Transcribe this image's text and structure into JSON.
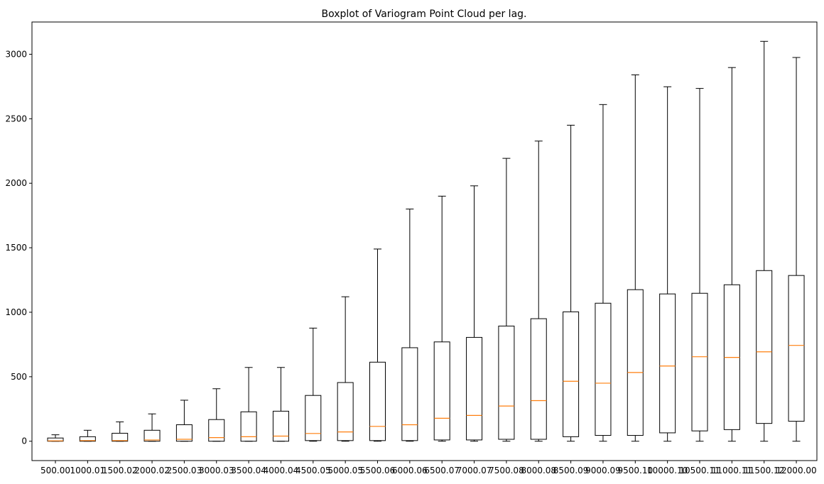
{
  "chart_data": {
    "type": "boxplot",
    "title": "Boxplot of Variogram Point Cloud per lag.",
    "xlabel": "",
    "ylabel": "",
    "ylim": [
      -150,
      3250
    ],
    "yticks": [
      0,
      500,
      1000,
      1500,
      2000,
      2500,
      3000
    ],
    "grid": false,
    "colors": {
      "box": "#000000",
      "median": "#ff7f0e"
    },
    "categories": [
      "500.00",
      "1000.01",
      "1500.02",
      "2000.02",
      "2500.03",
      "3000.03",
      "3500.04",
      "4000.04",
      "4500.05",
      "5000.05",
      "5500.06",
      "6000.06",
      "6500.07",
      "7000.07",
      "7500.08",
      "8000.08",
      "8500.09",
      "9000.09",
      "9500.10",
      "10000.10",
      "10500.11",
      "11000.11",
      "11500.12",
      "12000.00"
    ],
    "boxes": [
      {
        "whisker_low": 0,
        "q1": 0,
        "median": 3,
        "q3": 25,
        "whisker_high": 50
      },
      {
        "whisker_low": 0,
        "q1": 0,
        "median": 5,
        "q3": 35,
        "whisker_high": 85
      },
      {
        "whisker_low": 0,
        "q1": 0,
        "median": 5,
        "q3": 62,
        "whisker_high": 150
      },
      {
        "whisker_low": 0,
        "q1": 0,
        "median": 10,
        "q3": 85,
        "whisker_high": 212
      },
      {
        "whisker_low": 0,
        "q1": 0,
        "median": 15,
        "q3": 128,
        "whisker_high": 318
      },
      {
        "whisker_low": 0,
        "q1": 0,
        "median": 28,
        "q3": 168,
        "whisker_high": 407
      },
      {
        "whisker_low": 0,
        "q1": 0,
        "median": 35,
        "q3": 228,
        "whisker_high": 572
      },
      {
        "whisker_low": 0,
        "q1": 0,
        "median": 40,
        "q3": 233,
        "whisker_high": 572
      },
      {
        "whisker_low": 0,
        "q1": 5,
        "median": 60,
        "q3": 355,
        "whisker_high": 877
      },
      {
        "whisker_low": 0,
        "q1": 5,
        "median": 72,
        "q3": 455,
        "whisker_high": 1120
      },
      {
        "whisker_low": 0,
        "q1": 5,
        "median": 115,
        "q3": 613,
        "whisker_high": 1490
      },
      {
        "whisker_low": 0,
        "q1": 5,
        "median": 128,
        "q3": 725,
        "whisker_high": 1800
      },
      {
        "whisker_low": 0,
        "q1": 10,
        "median": 178,
        "q3": 770,
        "whisker_high": 1900
      },
      {
        "whisker_low": 0,
        "q1": 10,
        "median": 200,
        "q3": 805,
        "whisker_high": 1980
      },
      {
        "whisker_low": 0,
        "q1": 15,
        "median": 273,
        "q3": 893,
        "whisker_high": 2193
      },
      {
        "whisker_low": 0,
        "q1": 15,
        "median": 315,
        "q3": 950,
        "whisker_high": 2327
      },
      {
        "whisker_low": 0,
        "q1": 35,
        "median": 465,
        "q3": 1003,
        "whisker_high": 2450
      },
      {
        "whisker_low": 0,
        "q1": 45,
        "median": 450,
        "q3": 1070,
        "whisker_high": 2610
      },
      {
        "whisker_low": 0,
        "q1": 45,
        "median": 533,
        "q3": 1175,
        "whisker_high": 2840
      },
      {
        "whisker_low": 0,
        "q1": 65,
        "median": 583,
        "q3": 1142,
        "whisker_high": 2748
      },
      {
        "whisker_low": 0,
        "q1": 80,
        "median": 655,
        "q3": 1147,
        "whisker_high": 2735
      },
      {
        "whisker_low": 0,
        "q1": 90,
        "median": 650,
        "q3": 1213,
        "whisker_high": 2897
      },
      {
        "whisker_low": 0,
        "q1": 138,
        "median": 693,
        "q3": 1323,
        "whisker_high": 3100
      },
      {
        "whisker_low": 0,
        "q1": 155,
        "median": 743,
        "q3": 1285,
        "whisker_high": 2975
      }
    ]
  }
}
